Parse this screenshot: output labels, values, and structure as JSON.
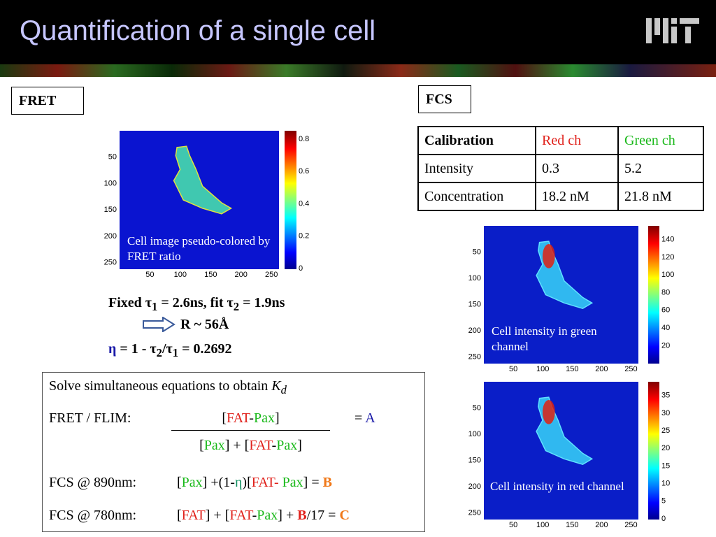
{
  "header": {
    "title": "Quantification of a single cell"
  },
  "fret": {
    "label": "FRET",
    "image": {
      "yticks": [
        "50",
        "100",
        "150",
        "200",
        "250"
      ],
      "xticks": [
        "50",
        "100",
        "150",
        "200",
        "250"
      ],
      "colorbar_ticks": [
        "0.8",
        "0.6",
        "0.4",
        "0.2",
        "0"
      ],
      "caption": "Cell image pseudo-colored by FRET ratio"
    },
    "fixed_line": [
      "Fixed τ",
      "1",
      " = 2.6ns, fit τ",
      "2",
      " = 1.9ns"
    ],
    "r_line": "R ~ 56Å",
    "eta_line": [
      "η",
      " = 1 - τ",
      "2",
      "/τ",
      "1",
      " = 0.2692"
    ]
  },
  "fcs": {
    "label": "FCS",
    "table": {
      "header": [
        "Calibration",
        "Red ch",
        "Green ch"
      ],
      "rows": [
        [
          "Intensity",
          "0.3",
          "5.2"
        ],
        [
          "Concentration",
          "18.2 nM",
          "21.8 nM"
        ]
      ]
    },
    "green_image": {
      "yticks": [
        "50",
        "100",
        "150",
        "200",
        "250"
      ],
      "xticks": [
        "50",
        "100",
        "150",
        "200",
        "250"
      ],
      "colorbar_ticks": [
        "140",
        "120",
        "100",
        "80",
        "60",
        "40",
        "20"
      ],
      "caption": "Cell intensity in green channel"
    },
    "red_image": {
      "yticks": [
        "50",
        "100",
        "150",
        "200",
        "250"
      ],
      "xticks": [
        "50",
        "100",
        "150",
        "200",
        "250"
      ],
      "colorbar_ticks": [
        "35",
        "30",
        "25",
        "20",
        "15",
        "10",
        "5",
        "0"
      ],
      "caption": "Cell intensity in red channel"
    }
  },
  "equations": {
    "heading": [
      "Solve simultaneous equations to obtain ",
      "K",
      "d"
    ],
    "fret_flim": {
      "label": "FRET / FLIM:",
      "numerator": [
        "[",
        "FAT",
        "-",
        "Pax",
        "]"
      ],
      "denominator": [
        "[",
        "Pax",
        "] + [",
        "FAT",
        "-",
        "Pax",
        "]"
      ],
      "rhs": [
        "= ",
        "A"
      ]
    },
    "fcs_890": {
      "label": "FCS @ 890nm:",
      "expr": [
        "[",
        "Pax",
        "] +(1-",
        "η",
        ")[",
        "FAT",
        "- ",
        "Pax",
        "] = ",
        "B"
      ]
    },
    "fcs_780": {
      "label": "FCS @ 780nm:",
      "expr": [
        "[",
        "FAT",
        "] + [",
        "FAT",
        "-",
        "Pax",
        "] + ",
        "B",
        "/17 = ",
        "C"
      ]
    }
  }
}
